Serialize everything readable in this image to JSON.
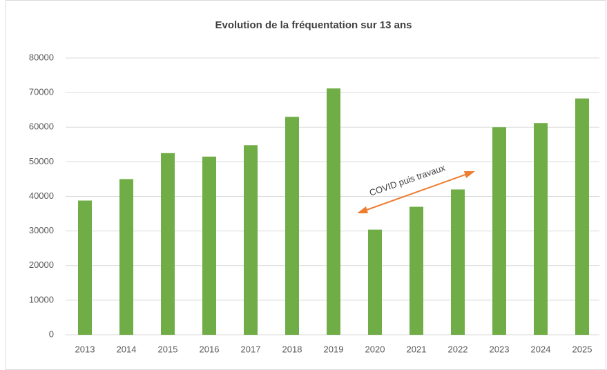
{
  "chart_data": {
    "type": "bar",
    "title": "Evolution de la fréquentation sur 13 ans",
    "categories": [
      "2013",
      "2014",
      "2015",
      "2016",
      "2017",
      "2018",
      "2019",
      "2020",
      "2021",
      "2022",
      "2023",
      "2024",
      "2025"
    ],
    "values": [
      38800,
      45000,
      52500,
      51500,
      54800,
      63000,
      71200,
      30400,
      37000,
      42000,
      60000,
      61200,
      68300
    ],
    "color": "#70ad47",
    "ylim": [
      0,
      80000
    ],
    "yticks": [
      0,
      10000,
      20000,
      30000,
      40000,
      50000,
      60000,
      70000,
      80000
    ],
    "grid": true,
    "annotations": [
      {
        "text": "COVID puis travaux"
      }
    ]
  }
}
